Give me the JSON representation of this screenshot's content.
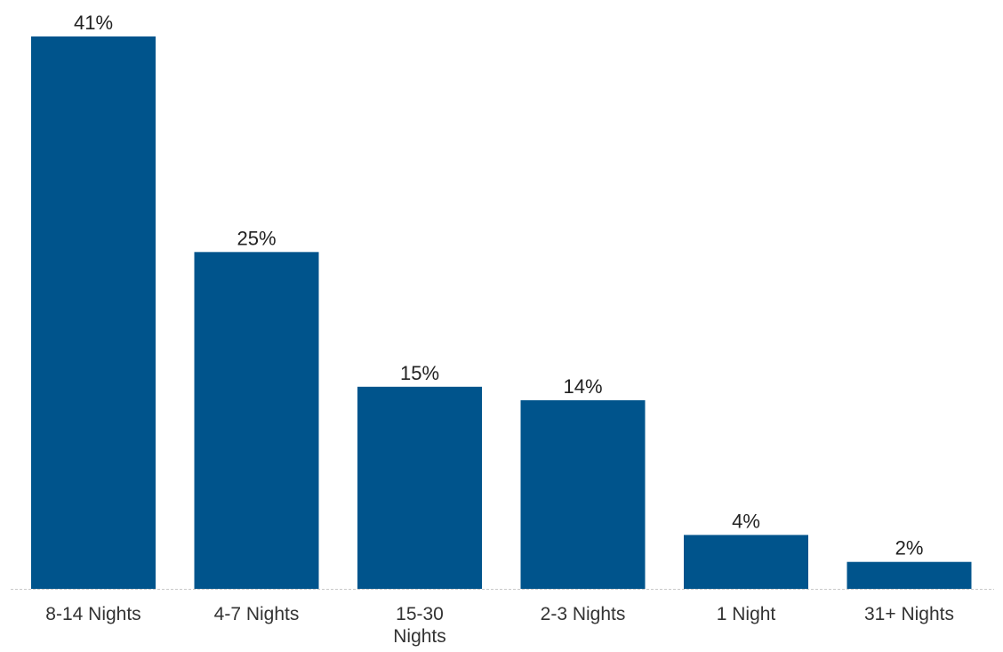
{
  "chart_data": {
    "type": "bar",
    "categories": [
      "8-14 Nights",
      "4-7 Nights",
      "15-30 Nights",
      "2-3 Nights",
      "1 Night",
      "31+ Nights"
    ],
    "category_label_lines": [
      [
        "8-14 Nights"
      ],
      [
        "4-7 Nights"
      ],
      [
        "15-30",
        "Nights"
      ],
      [
        "2-3 Nights"
      ],
      [
        "1 Night"
      ],
      [
        "31+ Nights"
      ]
    ],
    "values": [
      41,
      25,
      15,
      14,
      4,
      2
    ],
    "value_labels": [
      "41%",
      "25%",
      "15%",
      "14%",
      "4%",
      "2%"
    ],
    "unit": "%",
    "ylim": [
      0,
      41
    ],
    "grid": false,
    "legend": "none",
    "bar_color": "#00548c",
    "baseline_color": "#c8c8c8"
  }
}
